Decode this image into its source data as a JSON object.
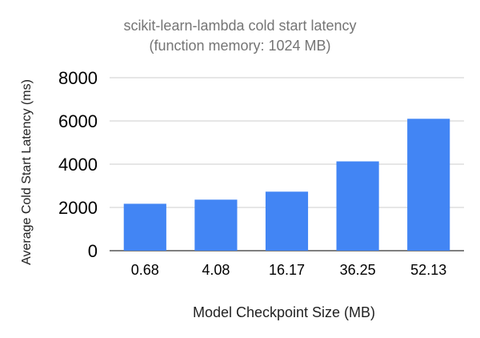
{
  "chart_data": {
    "type": "bar",
    "title_line1": "scikit-learn-lambda cold start latency",
    "title_line2": "(function memory: 1024 MB)",
    "xlabel": "Model Checkpoint Size (MB)",
    "ylabel": "Average Cold Start Latency (ms)",
    "categories": [
      "0.68",
      "4.08",
      "16.17",
      "36.25",
      "52.13"
    ],
    "values": [
      2170,
      2360,
      2730,
      4130,
      6100
    ],
    "ylim": [
      0,
      8000
    ],
    "yticks": [
      "0",
      "2000",
      "4000",
      "6000",
      "8000"
    ],
    "grid": true,
    "legend": "none",
    "bar_color": "#4285f4"
  }
}
